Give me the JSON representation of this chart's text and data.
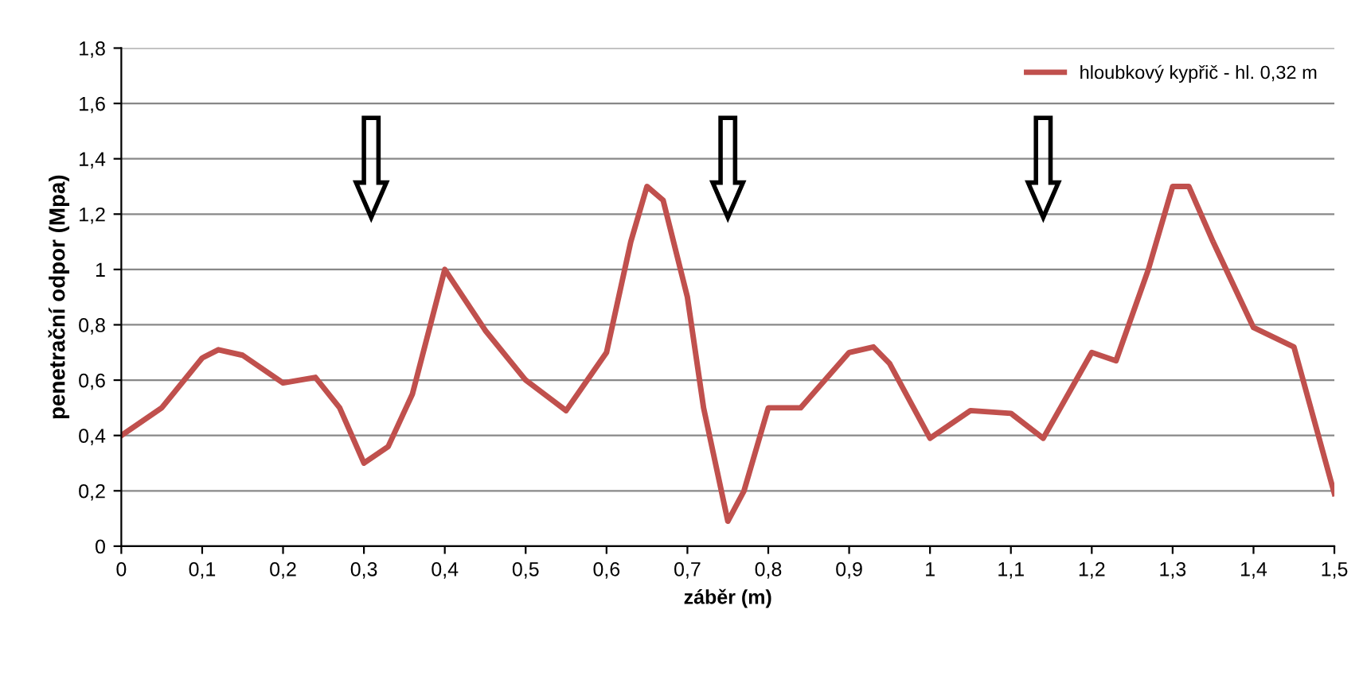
{
  "chart_data": {
    "type": "line",
    "xlabel": "záběr (m)",
    "ylabel": "penetrační odpor (Mpa)",
    "x": [
      0,
      0.05,
      0.1,
      0.12,
      0.15,
      0.2,
      0.24,
      0.27,
      0.3,
      0.33,
      0.36,
      0.4,
      0.45,
      0.5,
      0.55,
      0.6,
      0.63,
      0.65,
      0.67,
      0.7,
      0.72,
      0.75,
      0.77,
      0.8,
      0.84,
      0.9,
      0.93,
      0.95,
      1.0,
      1.05,
      1.1,
      1.14,
      1.2,
      1.23,
      1.27,
      1.3,
      1.32,
      1.35,
      1.4,
      1.45,
      1.5
    ],
    "series": [
      {
        "name": "hloubkový kypřič - hl. 0,32 m",
        "color": "#c0504d",
        "values": [
          0.4,
          0.5,
          0.68,
          0.71,
          0.69,
          0.59,
          0.61,
          0.5,
          0.3,
          0.36,
          0.55,
          1.0,
          0.78,
          0.6,
          0.49,
          0.7,
          1.1,
          1.3,
          1.25,
          0.9,
          0.5,
          0.09,
          0.2,
          0.5,
          0.5,
          0.7,
          0.72,
          0.66,
          0.39,
          0.49,
          0.48,
          0.39,
          0.7,
          0.67,
          1.0,
          1.3,
          1.3,
          1.1,
          0.79,
          0.72,
          0.19
        ]
      }
    ],
    "xlim": [
      0,
      1.5
    ],
    "ylim": [
      0,
      1.8
    ],
    "xticks": [
      0,
      {
        "value": 0.1,
        "label": "0,1"
      },
      {
        "value": 0.2,
        "label": "0,2"
      },
      {
        "value": 0.3,
        "label": "0,3"
      },
      {
        "value": 0.4,
        "label": "0,4"
      },
      {
        "value": 0.5,
        "label": "0,5"
      },
      {
        "value": 0.6,
        "label": "0,6"
      },
      {
        "value": 0.7,
        "label": "0,7"
      },
      {
        "value": 0.8,
        "label": "0,8"
      },
      {
        "value": 0.9,
        "label": "0,9"
      },
      1,
      {
        "value": 1.1,
        "label": "1,1"
      },
      {
        "value": 1.2,
        "label": "1,2"
      },
      {
        "value": 1.3,
        "label": "1,3"
      },
      {
        "value": 1.4,
        "label": "1,4"
      },
      {
        "value": 1.5,
        "label": "1,5"
      }
    ],
    "yticks": [
      0,
      {
        "value": 0.2,
        "label": "0,2"
      },
      {
        "value": 0.4,
        "label": "0,4"
      },
      {
        "value": 0.6,
        "label": "0,6"
      },
      {
        "value": 0.8,
        "label": "0,8"
      },
      1,
      {
        "value": 1.2,
        "label": "1,2"
      },
      {
        "value": 1.4,
        "label": "1,4"
      },
      {
        "value": 1.6,
        "label": "1,6"
      },
      {
        "value": 1.8,
        "label": "1,8"
      }
    ],
    "grid": "y",
    "legend": "top right",
    "marker": "none",
    "line_style": "solid"
  }
}
